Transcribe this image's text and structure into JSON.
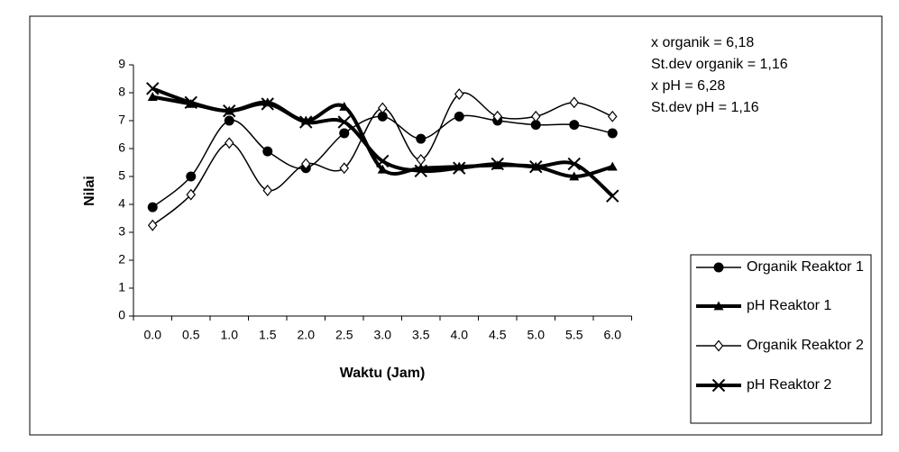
{
  "chart_data": {
    "type": "line",
    "y_axis_label": "Nilai",
    "x_axis_label": "Waktu (Jam)",
    "annotations": [
      "x organik =  6,18",
      "St.dev organik = 1,16",
      "x pH = 6,28",
      "St.dev pH = 1,16"
    ],
    "categories": [
      "0.0",
      "0.5",
      "1.0",
      "1.5",
      "2.0",
      "2.5",
      "3.0",
      "3.5",
      "4.0",
      "4.5",
      "5.0",
      "5.5",
      "6.0"
    ],
    "ylim": [
      0,
      9
    ],
    "yticks": [
      0,
      1,
      2,
      3,
      4,
      5,
      6,
      7,
      8,
      9
    ],
    "smooth": true,
    "series": [
      {
        "name": "Organik Reaktor 1",
        "color": "#000000",
        "marker": "circle",
        "width": 1.5,
        "values": [
          3.9,
          5.0,
          7.0,
          5.9,
          5.3,
          6.55,
          7.15,
          6.35,
          7.15,
          7.0,
          6.85,
          6.85,
          6.55
        ]
      },
      {
        "name": "pH Reaktor 1",
        "color": "#000000",
        "marker": "triangle",
        "width": 4,
        "values": [
          7.85,
          7.6,
          7.35,
          7.65,
          7.0,
          7.5,
          5.25,
          5.3,
          5.35,
          5.4,
          5.35,
          5.0,
          5.35
        ]
      },
      {
        "name": "Organik Reaktor 2",
        "color": "#000000",
        "marker": "diamond",
        "width": 1.5,
        "values": [
          3.25,
          4.35,
          6.2,
          4.5,
          5.45,
          5.3,
          7.45,
          5.6,
          7.95,
          7.15,
          7.15,
          7.65,
          7.15
        ]
      },
      {
        "name": "pH Reaktor 2",
        "color": "#000000",
        "marker": "x",
        "width": 4,
        "values": [
          8.15,
          7.65,
          7.35,
          7.6,
          6.95,
          6.95,
          5.55,
          5.2,
          5.3,
          5.45,
          5.35,
          5.45,
          4.3
        ]
      }
    ]
  }
}
